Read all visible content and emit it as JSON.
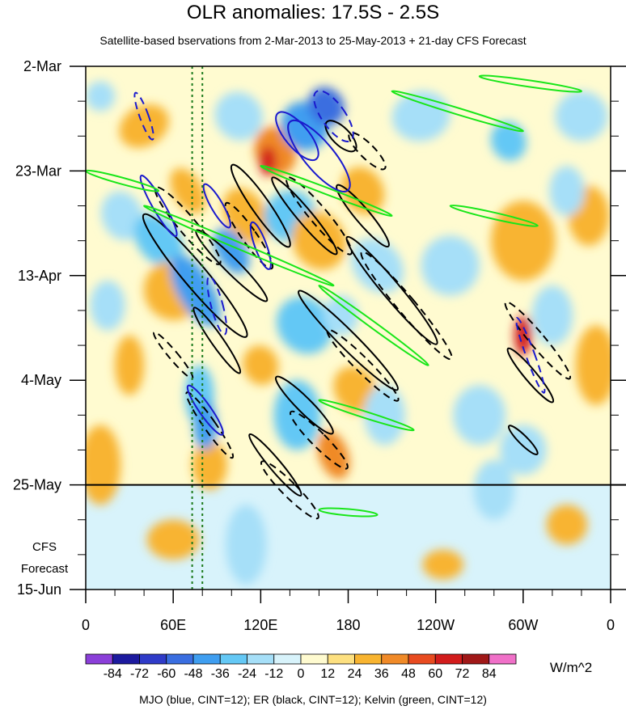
{
  "chart_data": {
    "type": "heatmap",
    "title": "OLR anomalies: 17.5S - 2.5S",
    "subtitle": "Satellite-based bservations from 2-Mar-2013 to 25-May-2013 + 21-day CFS Forecast",
    "x_ticks": [
      "0",
      "60E",
      "120E",
      "180",
      "120W",
      "60W",
      "0"
    ],
    "x_tick_lon": [
      0,
      60,
      120,
      180,
      240,
      300,
      360
    ],
    "xlim": [
      0,
      360
    ],
    "y_ticks": [
      "2-Mar",
      "23-Mar",
      "13-Apr",
      "4-May",
      "25-May",
      "15-Jun"
    ],
    "y_tick_day": [
      0,
      21,
      42,
      63,
      84,
      105
    ],
    "ylim_days": [
      0,
      105
    ],
    "y_direction": "time increases downward",
    "forecast_start_day": 84,
    "forecast_label": [
      "CFS",
      "Forecast"
    ],
    "colorbar": {
      "levels": [
        "-84",
        "-72",
        "-60",
        "-48",
        "-36",
        "-24",
        "-12",
        "0",
        "12",
        "24",
        "36",
        "48",
        "60",
        "72",
        "84"
      ],
      "colors": [
        "#8b3fd9",
        "#1c1a9e",
        "#2f3bc8",
        "#3a6ee0",
        "#3f9ef0",
        "#64c8f5",
        "#a6dff8",
        "#d8f3fb",
        "#fffbd0",
        "#fde080",
        "#f8b430",
        "#f08a28",
        "#e84b20",
        "#d21c1c",
        "#a01818",
        "#f070c8"
      ],
      "unit": "W/m^2"
    },
    "reference_lines_lon": [
      73,
      80
    ],
    "footnote": "MJO (blue, CINT=12); ER (black, CINT=12); Kelvin (green, CINT=12)",
    "contour_colors": {
      "MJO": "#1a1acd",
      "ER": "#000000",
      "Kelvin": "#19e619"
    }
  }
}
